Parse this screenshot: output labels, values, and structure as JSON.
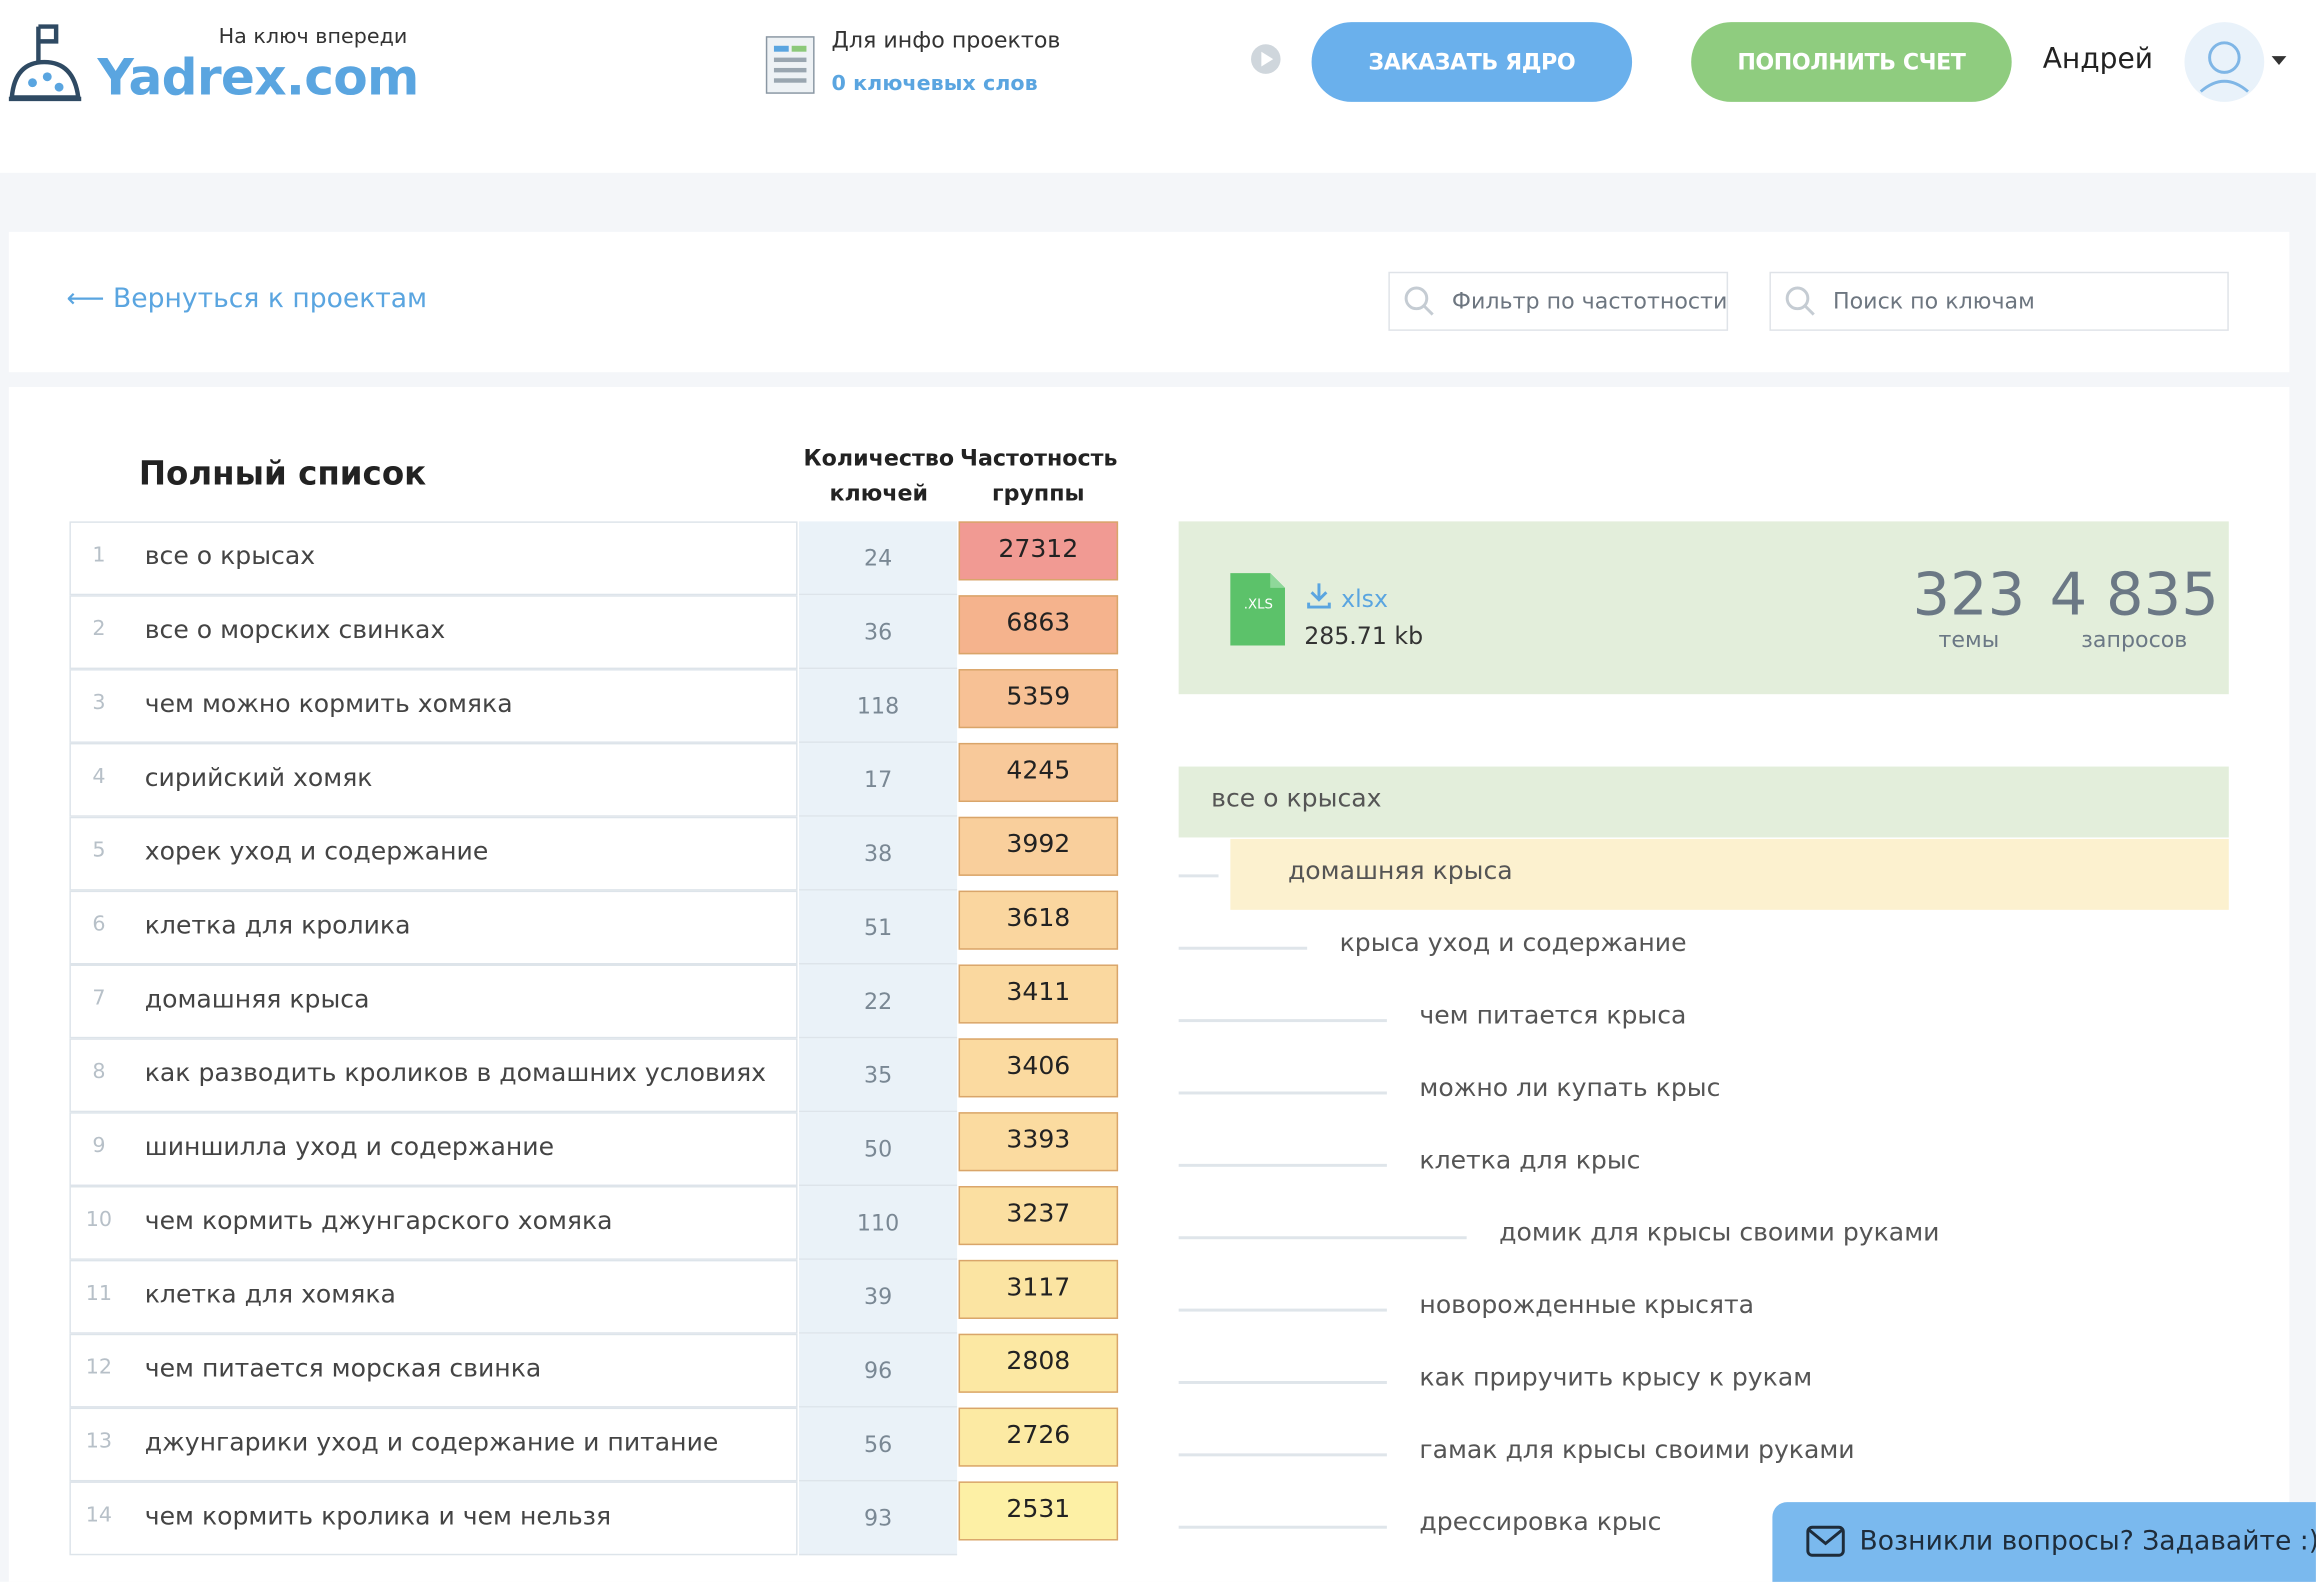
{
  "header": {
    "tagline": "На ключ впереди",
    "logo": "Yadrex.com",
    "info_label": "Для инфо проектов",
    "info_link": "0 ключевых слов",
    "order_button": "ЗАКАЗАТЬ ЯДРО",
    "topup_button": "ПОПОЛНИТЬ СЧЕТ",
    "user_name": "Андрей"
  },
  "toolbar": {
    "back_link": "⟵ Вернуться к проектам",
    "filter_placeholder": "Фильтр по частотности",
    "search_placeholder": "Поиск по ключам"
  },
  "table": {
    "title": "Полный список",
    "columns": [
      "Количество ключей",
      "Частотность группы"
    ],
    "rows": [
      {
        "n": 1,
        "keyword": "все о крысах",
        "keys": 24,
        "frequency": 27312,
        "color": "#f19a93"
      },
      {
        "n": 2,
        "keyword": "все о морских свинках",
        "keys": 36,
        "frequency": 6863,
        "color": "#f5b38d"
      },
      {
        "n": 3,
        "keyword": "чем можно кормить хомяка",
        "keys": 118,
        "frequency": 5359,
        "color": "#f7c195"
      },
      {
        "n": 4,
        "keyword": "сирийский хомяк",
        "keys": 17,
        "frequency": 4245,
        "color": "#f8c99a"
      },
      {
        "n": 5,
        "keyword": "хорек уход и содержание",
        "keys": 38,
        "frequency": 3992,
        "color": "#f9cf9c"
      },
      {
        "n": 6,
        "keyword": "клетка для кролика",
        "keys": 51,
        "frequency": 3618,
        "color": "#fad69f"
      },
      {
        "n": 7,
        "keyword": "домашняя крыса",
        "keys": 22,
        "frequency": 3411,
        "color": "#fad89f"
      },
      {
        "n": 8,
        "keyword": "как разводить кроликов в домашних условиях",
        "keys": 35,
        "frequency": 3406,
        "color": "#fbdaa0"
      },
      {
        "n": 9,
        "keyword": "шиншилла уход и содержание",
        "keys": 50,
        "frequency": 3393,
        "color": "#fbdba0"
      },
      {
        "n": 10,
        "keyword": "чем кормить джунгарского хомяка",
        "keys": 110,
        "frequency": 3237,
        "color": "#fbdfa1"
      },
      {
        "n": 11,
        "keyword": "клетка для хомяка",
        "keys": 39,
        "frequency": 3117,
        "color": "#fbe4a2"
      },
      {
        "n": 12,
        "keyword": "чем питается морская свинка",
        "keys": 96,
        "frequency": 2808,
        "color": "#fce8a3"
      },
      {
        "n": 13,
        "keyword": "джунгарики уход и содержание и питание",
        "keys": 56,
        "frequency": 2726,
        "color": "#fceaa3"
      },
      {
        "n": 14,
        "keyword": "чем кормить кролика и чем нельзя",
        "keys": 93,
        "frequency": 2531,
        "color": "#fdf0a5"
      }
    ]
  },
  "export": {
    "icon_label": ".XLS",
    "format": "xlsx",
    "size": "285.71 kb",
    "stats": [
      {
        "value": "323",
        "label": "темы"
      },
      {
        "value": "4 835",
        "label": "запросов"
      }
    ]
  },
  "tree": [
    {
      "label": "все о крысах",
      "level": 0
    },
    {
      "label": "домашняя крыса",
      "level": 1,
      "highlighted": true
    },
    {
      "label": "крыса уход и содержание",
      "level": 2
    },
    {
      "label": "чем питается крыса",
      "level": 3
    },
    {
      "label": "можно ли купать крыс",
      "level": 3
    },
    {
      "label": "клетка для крыс",
      "level": 3
    },
    {
      "label": "домик для крысы своими руками",
      "level": 4
    },
    {
      "label": "новорожденные крысята",
      "level": 3
    },
    {
      "label": "как приручить крысу к рукам",
      "level": 3
    },
    {
      "label": "гамак для крысы своими руками",
      "level": 3
    },
    {
      "label": "дрессировка крыс",
      "level": 3
    }
  ],
  "chat": {
    "text": "Возникли вопросы? Задавайте :)"
  }
}
